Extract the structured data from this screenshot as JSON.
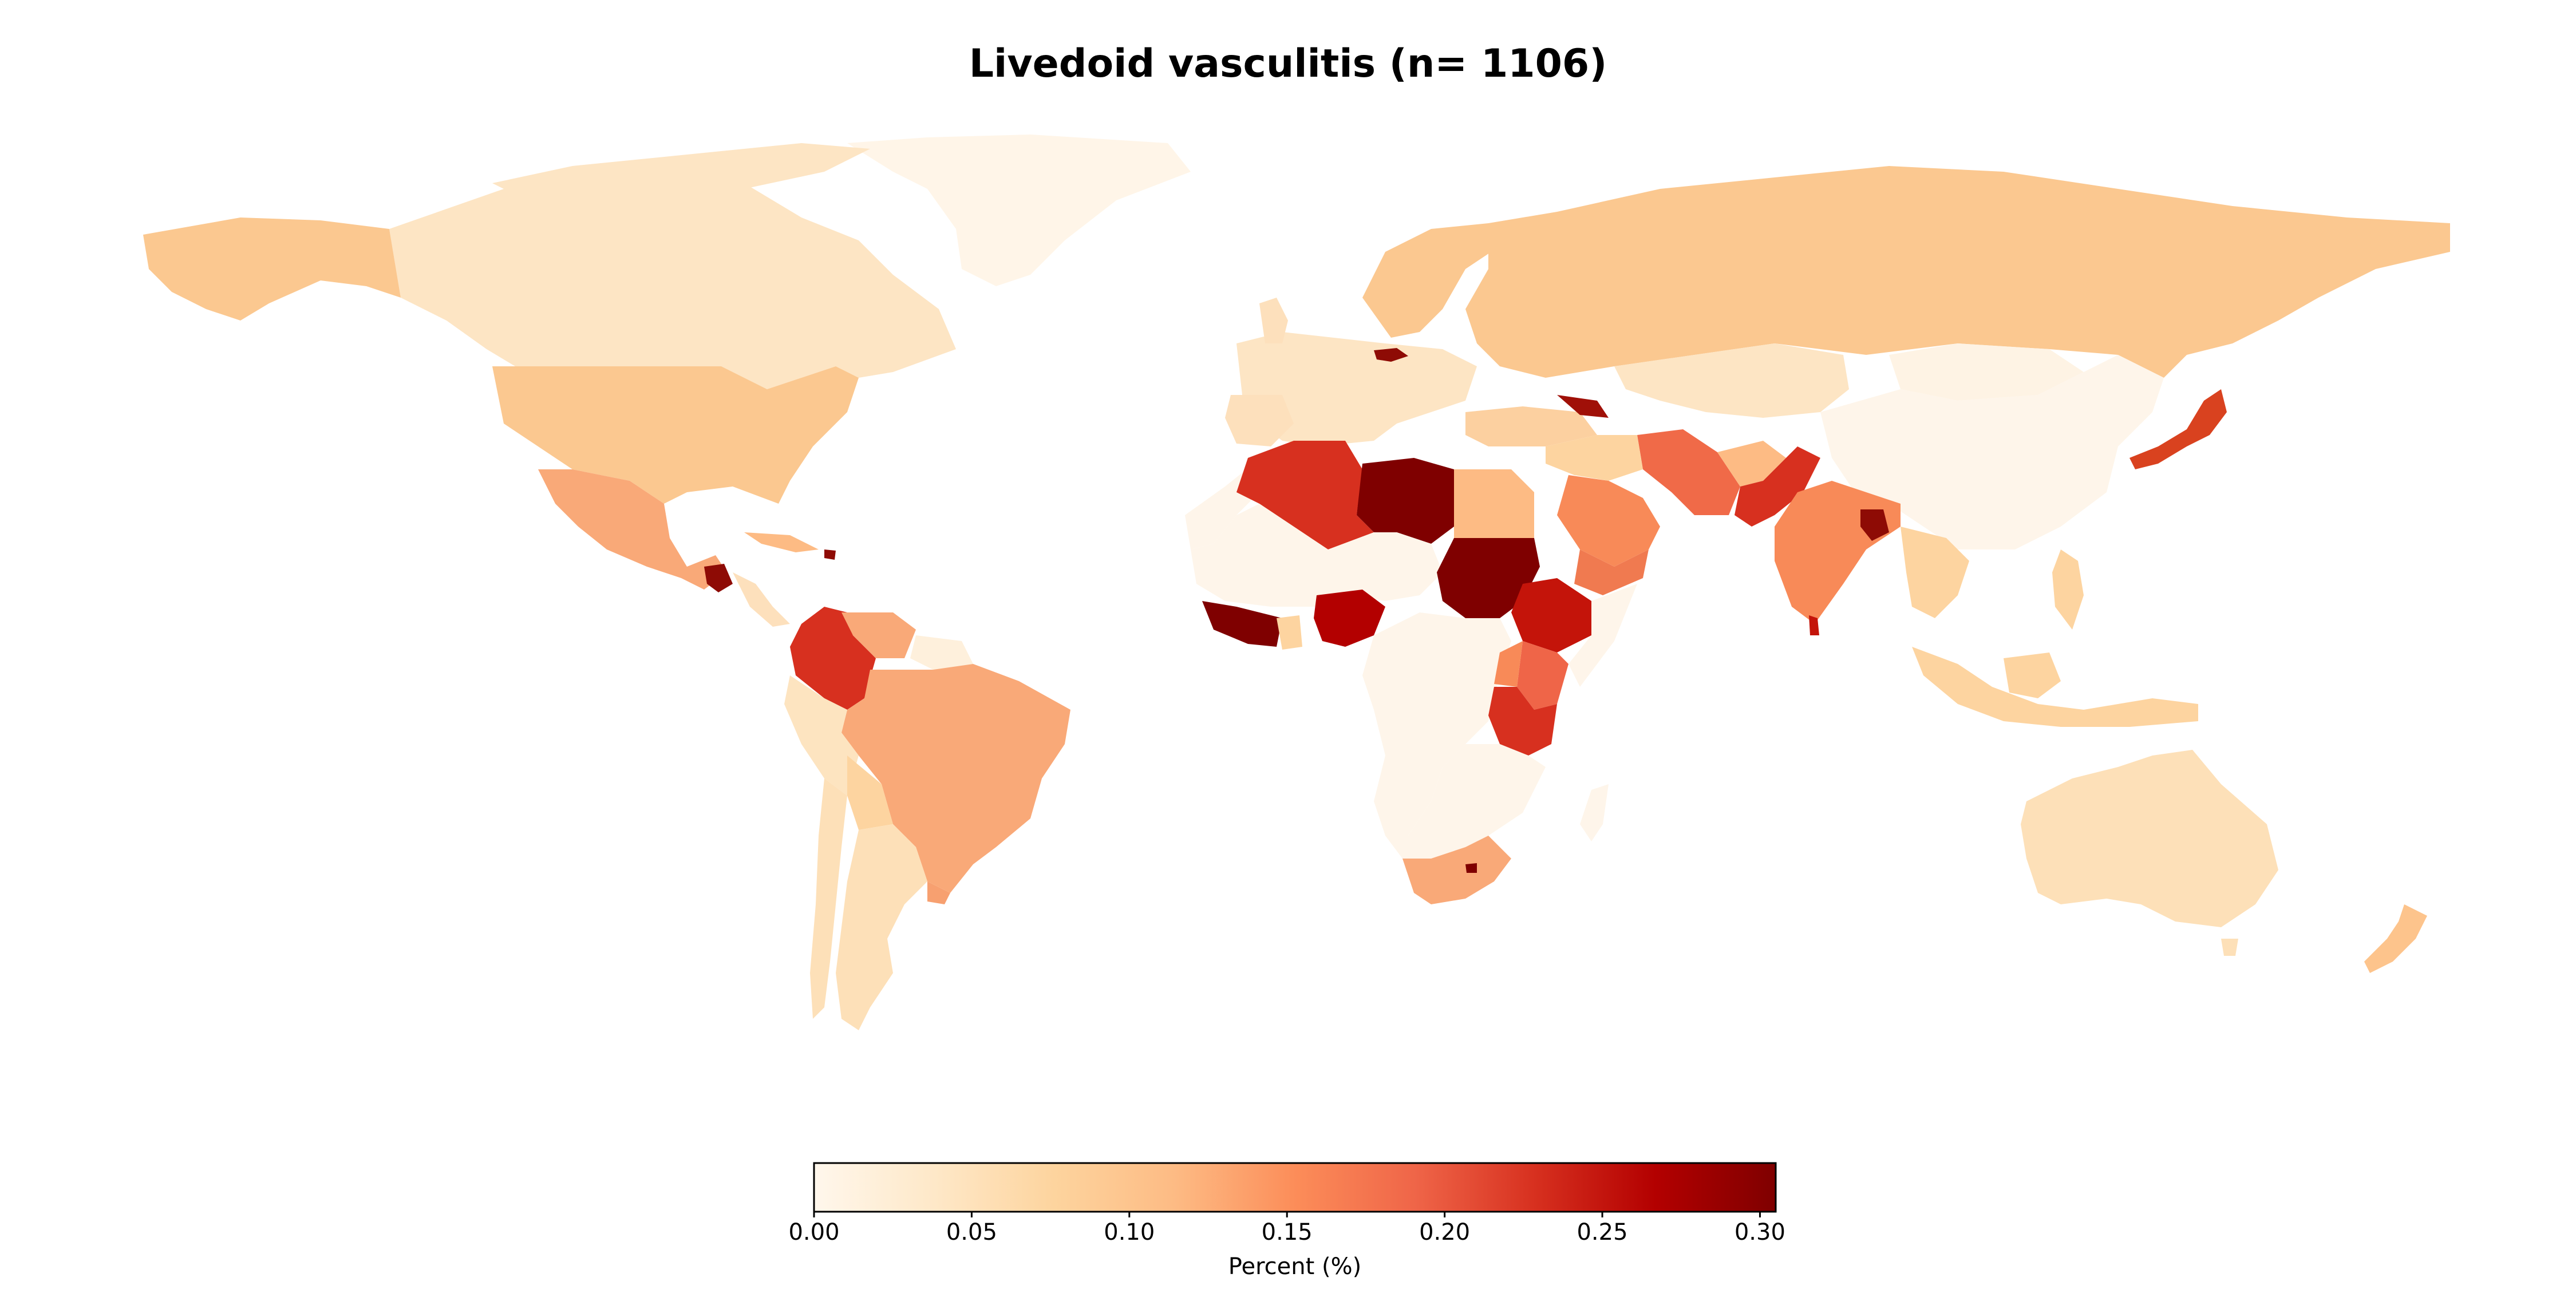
{
  "title": "Livedoid vasculitis (n= 1106)",
  "colorbar": {
    "label": "Percent (%)",
    "ticks": [
      "0.00",
      "0.05",
      "0.10",
      "0.15",
      "0.20",
      "0.25",
      "0.30"
    ],
    "range": [
      0.0,
      0.305
    ],
    "colormap": "OrRd",
    "stops": [
      "#fff7ec",
      "#fee8c8",
      "#fdd49e",
      "#fdbb84",
      "#fc8d59",
      "#ef6548",
      "#d7301f",
      "#b30000",
      "#7f0000"
    ]
  },
  "chart_data": {
    "type": "choropleth",
    "title": "Livedoid vasculitis (n= 1106)",
    "value_label": "Percent (%)",
    "countries": [
      {
        "name": "Canada",
        "value": 0.05
      },
      {
        "name": "United States",
        "value": 0.08
      },
      {
        "name": "Mexico",
        "value": 0.12
      },
      {
        "name": "Guatemala",
        "value": 0.3
      },
      {
        "name": "Cuba",
        "value": 0.1
      },
      {
        "name": "Haiti",
        "value": 0.3
      },
      {
        "name": "Colombia",
        "value": 0.22
      },
      {
        "name": "Venezuela",
        "value": 0.12
      },
      {
        "name": "Brazil",
        "value": 0.11
      },
      {
        "name": "Peru",
        "value": 0.04
      },
      {
        "name": "Bolivia",
        "value": 0.05
      },
      {
        "name": "Argentina",
        "value": 0.04
      },
      {
        "name": "Chile",
        "value": 0.04
      },
      {
        "name": "Uruguay",
        "value": 0.13
      },
      {
        "name": "Greenland",
        "value": 0.01
      },
      {
        "name": "Russia",
        "value": 0.08
      },
      {
        "name": "Kazakhstan",
        "value": 0.04
      },
      {
        "name": "China",
        "value": 0.01
      },
      {
        "name": "Mongolia",
        "value": 0.01
      },
      {
        "name": "Japan",
        "value": 0.2
      },
      {
        "name": "India",
        "value": 0.15
      },
      {
        "name": "Pakistan",
        "value": 0.23
      },
      {
        "name": "Bangladesh",
        "value": 0.3
      },
      {
        "name": "Sri Lanka",
        "value": 0.25
      },
      {
        "name": "Iran",
        "value": 0.17
      },
      {
        "name": "Saudi Arabia",
        "value": 0.15
      },
      {
        "name": "Yemen",
        "value": 0.16
      },
      {
        "name": "Turkey",
        "value": 0.07
      },
      {
        "name": "Georgia",
        "value": 0.28
      },
      {
        "name": "Egypt",
        "value": 0.1
      },
      {
        "name": "Libya",
        "value": 0.3
      },
      {
        "name": "Algeria",
        "value": 0.21
      },
      {
        "name": "Sudan",
        "value": 0.3
      },
      {
        "name": "Ethiopia",
        "value": 0.25
      },
      {
        "name": "Kenya",
        "value": 0.17
      },
      {
        "name": "Tanzania",
        "value": 0.2
      },
      {
        "name": "Nigeria",
        "value": 0.26
      },
      {
        "name": "Côte d'Ivoire",
        "value": 0.3
      },
      {
        "name": "Ghana",
        "value": 0.06
      },
      {
        "name": "South Africa",
        "value": 0.1
      },
      {
        "name": "Lesotho",
        "value": 0.3
      },
      {
        "name": "Australia",
        "value": 0.05
      },
      {
        "name": "New Zealand",
        "value": 0.07
      },
      {
        "name": "Indonesia",
        "value": 0.06
      },
      {
        "name": "Philippines",
        "value": 0.06
      },
      {
        "name": "Czechia",
        "value": 0.3
      },
      {
        "name": "Europe (other)",
        "value": 0.05
      }
    ]
  }
}
